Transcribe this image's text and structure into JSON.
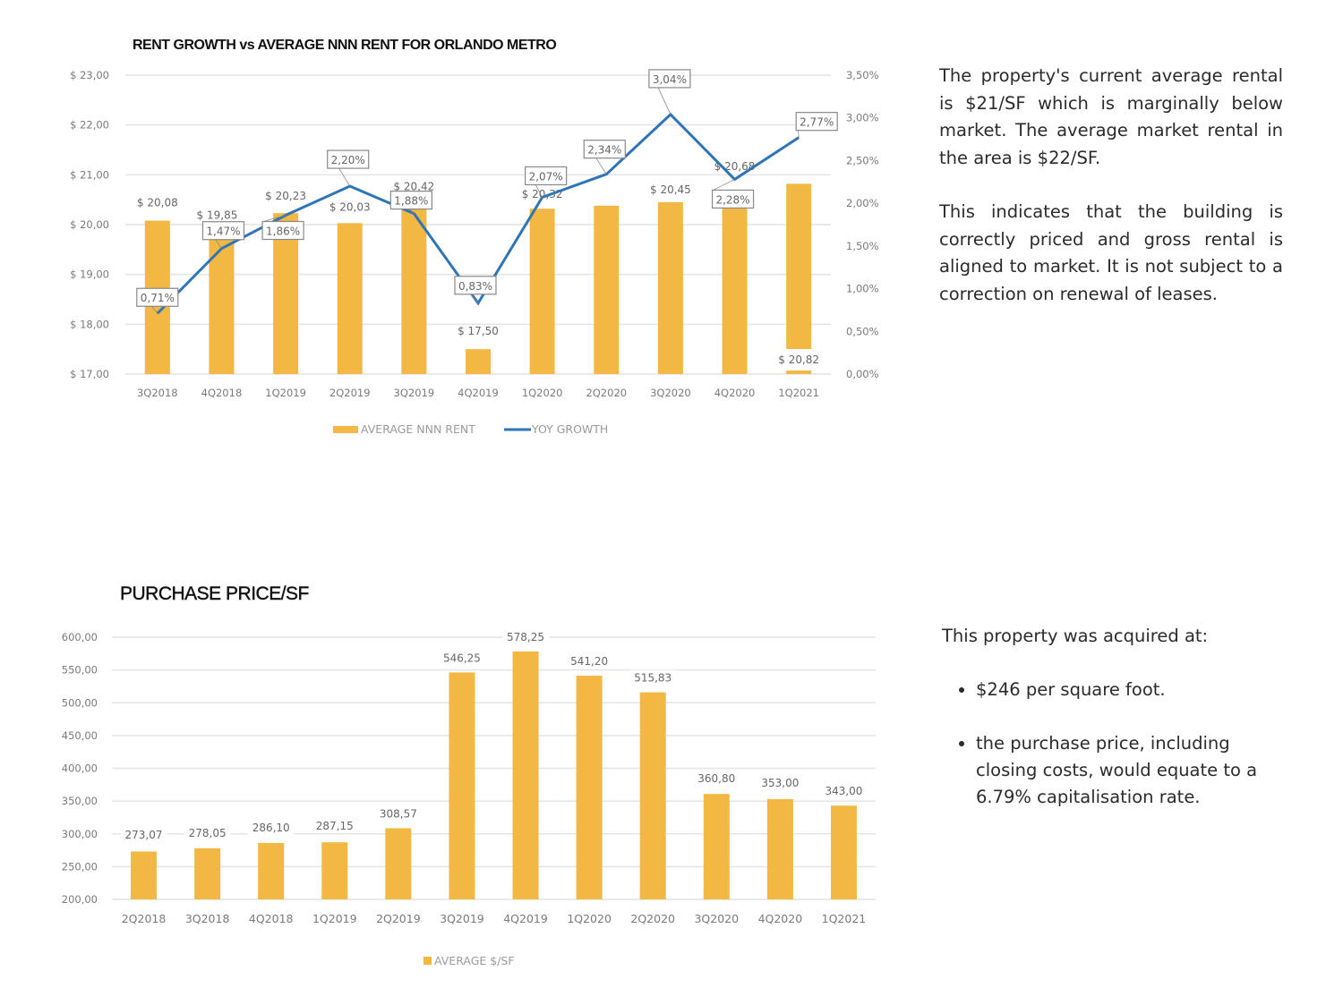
{
  "colors": {
    "bar": "#F2B843",
    "line": "#2E75B6",
    "grid": "#e4e4e4",
    "axis_text": "#7a7a7a",
    "text": "#2b2b2b"
  },
  "chart_data": [
    {
      "type": "bar+line",
      "title": "RENT GROWTH vs AVERAGE NNN RENT FOR ORLANDO METRO",
      "categories": [
        "3Q2018",
        "4Q2018",
        "1Q2019",
        "2Q2019",
        "3Q2019",
        "4Q2019",
        "1Q2020",
        "2Q2020",
        "3Q2020",
        "4Q2020",
        "1Q2021"
      ],
      "series": [
        {
          "name": "AVERAGE NNN RENT",
          "type": "bar",
          "axis": "left",
          "values": [
            20.08,
            19.85,
            20.23,
            20.03,
            20.42,
            17.5,
            20.32,
            20.38,
            20.45,
            20.68,
            20.82
          ],
          "labels": [
            "$ 20,08",
            "$ 19,85",
            "$ 20,23",
            "$ 20,03",
            "$ 20,42",
            "$ 17,50",
            "$ 20,32",
            "",
            "$ 20,45",
            "$ 20,68",
            "$ 20,82"
          ]
        },
        {
          "name": "YOY GROWTH",
          "type": "line",
          "axis": "right",
          "values": [
            0.71,
            1.47,
            1.86,
            2.2,
            1.88,
            0.83,
            2.07,
            2.34,
            3.04,
            2.28,
            2.77
          ],
          "labels": [
            "0,71%",
            "1,47%",
            "1,86%",
            "2,20%",
            "1,88%",
            "0,83%",
            "2,07%",
            "2,34%",
            "3,04%",
            "2,28%",
            "2,77%"
          ]
        }
      ],
      "y_left": {
        "ylim": [
          17,
          23
        ],
        "ticks": [
          "$ 17,00",
          "$ 18,00",
          "$ 19,00",
          "$ 20,00",
          "$ 21,00",
          "$ 22,00",
          "$ 23,00"
        ]
      },
      "y_right": {
        "ylim": [
          0,
          3.5
        ],
        "ticks": [
          "0,00%",
          "0,50%",
          "1,00%",
          "1,50%",
          "2,00%",
          "2,50%",
          "3,00%",
          "3,50%"
        ]
      },
      "grid": true,
      "legend": {
        "position": "bottom",
        "items": [
          "AVERAGE NNN RENT",
          "YOY GROWTH"
        ]
      }
    },
    {
      "type": "bar",
      "title": "PURCHASE PRICE/SF",
      "categories": [
        "2Q2018",
        "3Q2018",
        "4Q2018",
        "1Q2019",
        "2Q2019",
        "3Q2019",
        "4Q2019",
        "1Q2020",
        "2Q2020",
        "3Q2020",
        "4Q2020",
        "1Q2021"
      ],
      "values": [
        273.07,
        278.05,
        286.1,
        287.15,
        308.57,
        546.25,
        578.25,
        541.2,
        515.83,
        360.8,
        353.0,
        343.0
      ],
      "labels": [
        "273,07",
        "278,05",
        "286,10",
        "287,15",
        "308,57",
        "546,25",
        "578,25",
        "541,20",
        "515,83",
        "360,80",
        "353,00",
        "343,00"
      ],
      "ylim": [
        200,
        600
      ],
      "ticks": [
        "200,00",
        "250,00",
        "300,00",
        "350,00",
        "400,00",
        "450,00",
        "500,00",
        "550,00",
        "600,00"
      ],
      "grid": true,
      "legend": {
        "position": "bottom",
        "items": [
          "AVERAGE $/SF"
        ]
      }
    }
  ],
  "text1": {
    "para1": "The property's current average rental is $21/SF which is marginally below market. The average market rental in the area is $22/SF.",
    "para2": "This indicates that the building is correctly priced and gross rental is aligned to market. It is not subject to a correction on renewal of leases."
  },
  "text2": {
    "intro": "This property was acquired at:",
    "bullets": [
      "$246 per square foot.",
      "the purchase price, including closing costs, would equate to a 6.79% capitalisation rate."
    ]
  }
}
